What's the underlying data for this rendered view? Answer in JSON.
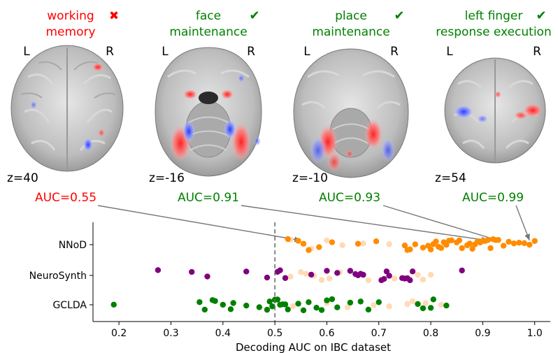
{
  "panels": [
    {
      "title_lines": [
        "working",
        "memory"
      ],
      "mark": "✖",
      "color": "#ff0000",
      "mark_color": "#ff0000",
      "left_label": "L",
      "right_label": "R",
      "slice": "z=40",
      "auc_label": "AUC=0.55",
      "auc": 0.55,
      "row": "NNoD"
    },
    {
      "title_lines": [
        "face",
        "maintenance"
      ],
      "mark": "✔",
      "color": "#008000",
      "mark_color": "#008000",
      "left_label": "L",
      "right_label": "R",
      "slice": "z=-16",
      "auc_label": "AUC=0.91",
      "auc": 0.91,
      "row": "NNoD"
    },
    {
      "title_lines": [
        "place",
        "maintenance"
      ],
      "mark": "✔",
      "color": "#008000",
      "mark_color": "#008000",
      "left_label": "L",
      "right_label": "R",
      "slice": "z=-10",
      "auc_label": "AUC=0.93",
      "auc": 0.93,
      "row": "NNoD"
    },
    {
      "title_lines": [
        "left finger",
        "response execution"
      ],
      "mark": "✔",
      "color": "#008000",
      "mark_color": "#008000",
      "left_label": "L",
      "right_label": "R",
      "slice": "z=54",
      "auc_label": "AUC=0.99",
      "auc": 0.99,
      "row": "NNoD"
    }
  ],
  "chart_data": {
    "type": "scatter",
    "xlabel": "Decoding AUC on IBC dataset",
    "xlim": [
      0.15,
      1.03
    ],
    "xticks": [
      0.2,
      0.3,
      0.4,
      0.5,
      0.6,
      0.7,
      0.8,
      0.9,
      1.0
    ],
    "xtick_labels": [
      "0.2",
      "0.3",
      "0.4",
      "0.5",
      "0.6",
      "0.7",
      "0.8",
      "0.9",
      "1.0"
    ],
    "reference_line": 0.5,
    "categories": [
      "NNoD",
      "NeuroSynth",
      "GCLDA"
    ],
    "colors": {
      "NNoD": "#ff8c00",
      "NeuroSynth": "#800080",
      "GCLDA": "#008000",
      "other": "#ffdab4"
    },
    "series": [
      {
        "name": "NNoD",
        "values": [
          0.525,
          0.545,
          0.555,
          0.565,
          0.585,
          0.61,
          0.66,
          0.695,
          0.75,
          0.755,
          0.76,
          0.77,
          0.785,
          0.795,
          0.8,
          0.805,
          0.81,
          0.815,
          0.82,
          0.825,
          0.83,
          0.835,
          0.84,
          0.85,
          0.855,
          0.86,
          0.87,
          0.875,
          0.88,
          0.885,
          0.89,
          0.895,
          0.9,
          0.905,
          0.91,
          0.915,
          0.92,
          0.925,
          0.93,
          0.94,
          0.95,
          0.96,
          0.97,
          0.98,
          0.99,
          1.0
        ]
      },
      {
        "name": "NeuroSynth",
        "values": [
          0.275,
          0.34,
          0.37,
          0.445,
          0.485,
          0.505,
          0.51,
          0.52,
          0.57,
          0.6,
          0.62,
          0.645,
          0.655,
          0.66,
          0.665,
          0.67,
          0.705,
          0.71,
          0.715,
          0.72,
          0.745,
          0.75,
          0.755,
          0.76,
          0.765,
          0.86
        ]
      },
      {
        "name": "GCLDA",
        "values": [
          0.19,
          0.355,
          0.365,
          0.38,
          0.385,
          0.4,
          0.415,
          0.42,
          0.445,
          0.47,
          0.485,
          0.49,
          0.495,
          0.5,
          0.505,
          0.51,
          0.515,
          0.52,
          0.525,
          0.545,
          0.555,
          0.565,
          0.58,
          0.59,
          0.6,
          0.61,
          0.62,
          0.645,
          0.665,
          0.68,
          0.7,
          0.775,
          0.785,
          0.8,
          0.805,
          0.83
        ]
      }
    ],
    "background_points": {
      "NNoD": [
        0.53,
        0.57,
        0.6,
        0.63,
        0.67,
        0.72
      ],
      "NeuroSynth": [
        0.53,
        0.55,
        0.56,
        0.575,
        0.59,
        0.605,
        0.625,
        0.68,
        0.73,
        0.775,
        0.785,
        0.8
      ],
      "GCLDA": [
        0.535,
        0.6,
        0.64,
        0.69,
        0.72,
        0.755,
        0.765,
        0.79,
        0.82
      ]
    }
  }
}
